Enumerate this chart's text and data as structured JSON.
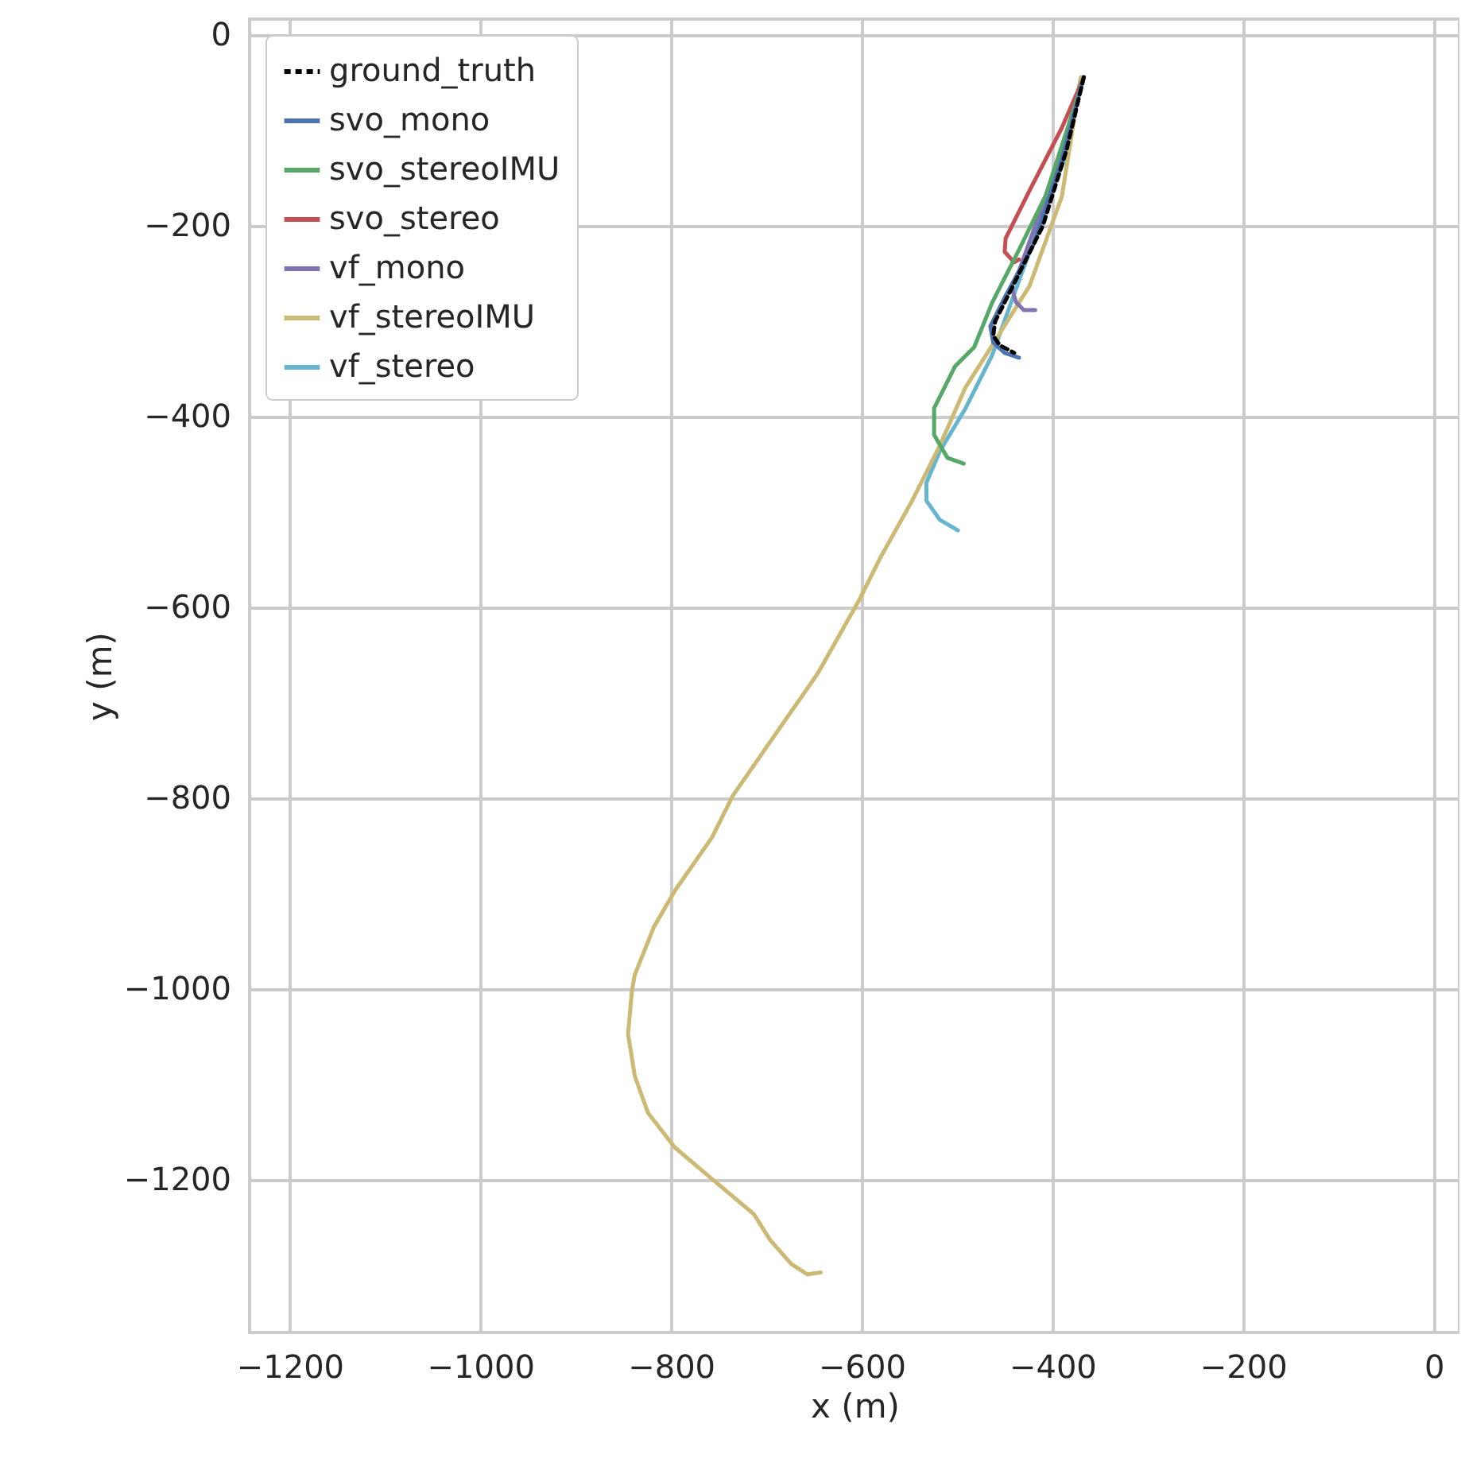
{
  "chart_data": {
    "type": "line",
    "xlabel": "x (m)",
    "ylabel": "y (m)",
    "xlim": [
      -1242,
      27
    ],
    "ylim": [
      -1360,
      17
    ],
    "xticks": [
      -1200,
      -1000,
      -800,
      -600,
      -400,
      -200,
      0
    ],
    "yticks": [
      0,
      -200,
      -400,
      -600,
      -800,
      -1000,
      -1200
    ],
    "grid": true,
    "legend": "top left",
    "series": [
      {
        "name": "ground_truth",
        "color": "#000000",
        "line_style": "dashed",
        "x": [
          -367,
          -385,
          -410,
          -440,
          -460,
          -462,
          -455,
          -440
        ],
        "values": [
          -44,
          -120,
          -200,
          -260,
          -300,
          -315,
          -325,
          -333
        ]
      },
      {
        "name": "svo_mono",
        "color": "#4c72b0",
        "x": [
          -367,
          -390,
          -420,
          -450,
          -465,
          -462,
          -450,
          -435
        ],
        "values": [
          -44,
          -130,
          -220,
          -275,
          -305,
          -322,
          -333,
          -338
        ]
      },
      {
        "name": "svo_stereoIMU",
        "color": "#55a868",
        "x": [
          -367,
          -380,
          -407,
          -435,
          -463,
          -482,
          -502,
          -524,
          -524,
          -510,
          -493
        ],
        "values": [
          -44,
          -85,
          -168,
          -225,
          -280,
          -327,
          -347,
          -391,
          -419,
          -443,
          -449
        ]
      },
      {
        "name": "svo_stereo",
        "color": "#c44e52",
        "x": [
          -367,
          -390,
          -424,
          -449,
          -450,
          -440,
          -435
        ],
        "values": [
          -44,
          -97,
          -163,
          -213,
          -227,
          -238,
          -235
        ]
      },
      {
        "name": "vf_mono",
        "color": "#8172b2",
        "x": [
          -367,
          -400,
          -435,
          -443,
          -438,
          -430,
          -418
        ],
        "values": [
          -44,
          -150,
          -247,
          -263,
          -280,
          -288,
          -288
        ]
      },
      {
        "name": "vf_stereoIMU",
        "color": "#ccb974",
        "x": [
          -370,
          -390,
          -424,
          -463,
          -491,
          -518,
          -546,
          -580,
          -602,
          -646,
          -685,
          -735,
          -757,
          -796,
          -818,
          -838,
          -841,
          -845,
          -838,
          -824,
          -796,
          -757,
          -713,
          -696,
          -674,
          -657,
          -643
        ],
        "values": [
          -44,
          -169,
          -263,
          -325,
          -369,
          -430,
          -486,
          -547,
          -591,
          -669,
          -725,
          -797,
          -841,
          -897,
          -935,
          -985,
          -1002,
          -1047,
          -1091,
          -1130,
          -1166,
          -1199,
          -1236,
          -1263,
          -1288,
          -1299,
          -1297
        ]
      },
      {
        "name": "vf_stereo",
        "color": "#64b5cd",
        "x": [
          -370,
          -385,
          -413,
          -441,
          -463,
          -491,
          -518,
          -532,
          -532,
          -518,
          -499
        ],
        "values": [
          -44,
          -124,
          -197,
          -274,
          -335,
          -391,
          -436,
          -469,
          -488,
          -508,
          -519
        ]
      }
    ]
  }
}
